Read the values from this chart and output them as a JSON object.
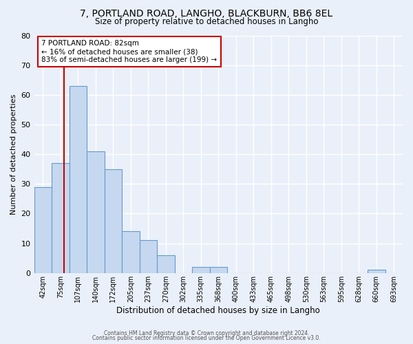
{
  "title": "7, PORTLAND ROAD, LANGHO, BLACKBURN, BB6 8EL",
  "subtitle": "Size of property relative to detached houses in Langho",
  "xlabel": "Distribution of detached houses by size in Langho",
  "ylabel": "Number of detached properties",
  "bin_labels": [
    "42sqm",
    "75sqm",
    "107sqm",
    "140sqm",
    "172sqm",
    "205sqm",
    "237sqm",
    "270sqm",
    "302sqm",
    "335sqm",
    "368sqm",
    "400sqm",
    "433sqm",
    "465sqm",
    "498sqm",
    "530sqm",
    "563sqm",
    "595sqm",
    "628sqm",
    "660sqm",
    "693sqm"
  ],
  "bar_heights": [
    29,
    37,
    63,
    41,
    35,
    14,
    11,
    6,
    0,
    2,
    2,
    0,
    0,
    0,
    0,
    0,
    0,
    0,
    0,
    1,
    0
  ],
  "bar_color": "#c5d8f0",
  "bar_edge_color": "#6699cc",
  "annotation_title": "7 PORTLAND ROAD: 82sqm",
  "annotation_line1": "← 16% of detached houses are smaller (38)",
  "annotation_line2": "83% of semi-detached houses are larger (199) →",
  "annotation_box_color": "#ffffff",
  "annotation_box_edge_color": "#cc0000",
  "vline_color": "#cc0000",
  "ylim": [
    0,
    80
  ],
  "yticks": [
    0,
    10,
    20,
    30,
    40,
    50,
    60,
    70,
    80
  ],
  "background_color": "#eaf0f9",
  "grid_color": "#ffffff",
  "footer1": "Contains HM Land Registry data © Crown copyright and database right 2024.",
  "footer2": "Contains public sector information licensed under the Open Government Licence v3.0."
}
